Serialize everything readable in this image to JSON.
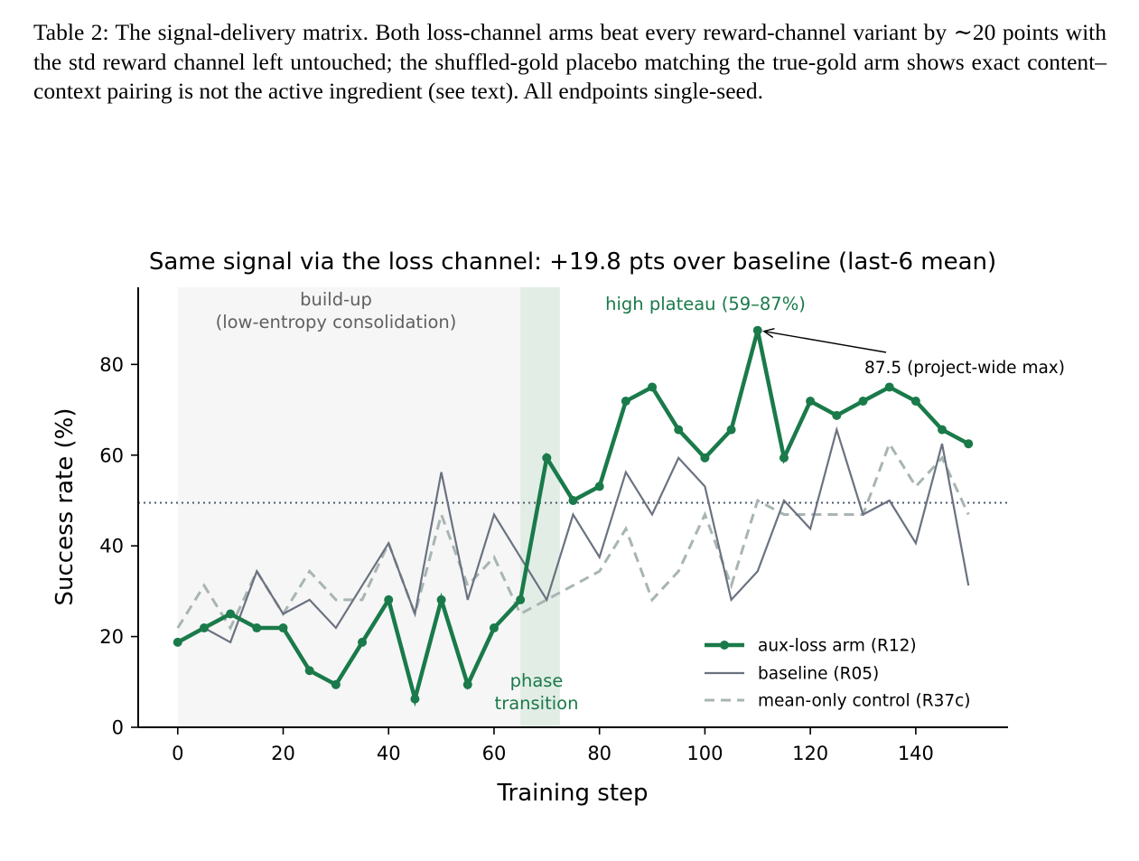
{
  "caption": {
    "text": "Table 2: The signal-delivery matrix. Both loss-channel arms beat every reward-channel variant by ∼20 points with the std reward channel left untouched; the shuffled-gold placebo matching the true-gold arm shows exact content–context pairing is not the active ingredient (see text). All endpoints single-seed."
  },
  "colors": {
    "aux": "#1a7a4a",
    "baseline": "#6b7280",
    "control": "#a7b5b3",
    "buildup_shade": "#f6f6f6",
    "phase_shade": "#d6e6dc",
    "reference_line": "#4d5a68"
  },
  "chart_data": {
    "type": "line",
    "title": "Same signal via the loss channel: +19.8 pts over baseline (last-6 mean)",
    "xlabel": "Training step",
    "ylabel": "Success rate (%)",
    "xlim": [
      -7.5,
      157.5
    ],
    "ylim": [
      0,
      97
    ],
    "xticks": [
      0,
      20,
      40,
      60,
      80,
      100,
      120,
      140
    ],
    "yticks": [
      0,
      20,
      40,
      60,
      80
    ],
    "grid": false,
    "legend_position": "lower-right",
    "reference_line_y": 49.5,
    "regions": [
      {
        "name": "build-up",
        "x": [
          0,
          65
        ],
        "label": "build-up\n(low-entropy consolidation)"
      },
      {
        "name": "phase transition",
        "x": [
          65,
          72.5
        ],
        "label": "phase\ntransition"
      }
    ],
    "annotations": [
      {
        "text": "high plateau (59–87%)",
        "x": 83.5,
        "y": 93.5
      },
      {
        "text": "87.5 (project-wide max)",
        "x": 110,
        "y": 87.5
      }
    ],
    "series": [
      {
        "name": "aux-loss arm (R12)",
        "style": "solid-markers",
        "x": [
          0,
          5,
          10,
          15,
          20,
          25,
          30,
          35,
          40,
          45,
          50,
          55,
          60,
          65,
          70,
          75,
          80,
          85,
          90,
          95,
          100,
          105,
          110,
          115,
          120,
          125,
          130,
          135,
          140,
          145,
          150
        ],
        "values": [
          18.75,
          21.9,
          25,
          21.9,
          21.9,
          12.5,
          9.4,
          18.75,
          28.1,
          6.25,
          28.1,
          9.4,
          21.9,
          28.1,
          59.4,
          50,
          53.1,
          71.9,
          75,
          65.6,
          59.4,
          65.6,
          87.5,
          59.4,
          71.9,
          68.75,
          71.9,
          75,
          71.9,
          65.6,
          62.5
        ]
      },
      {
        "name": "baseline (R05)",
        "style": "solid",
        "x": [
          0,
          5,
          10,
          15,
          20,
          25,
          30,
          35,
          40,
          45,
          50,
          55,
          60,
          65,
          70,
          75,
          80,
          85,
          90,
          95,
          100,
          105,
          110,
          115,
          120,
          125,
          130,
          135,
          140,
          145,
          150
        ],
        "values": [
          18.75,
          21.9,
          18.75,
          34.4,
          25,
          28.1,
          21.9,
          31.25,
          40.6,
          25,
          56.25,
          28.1,
          46.9,
          37.5,
          28.1,
          46.9,
          37.5,
          56.25,
          46.9,
          59.4,
          53.1,
          28.1,
          34.4,
          50,
          43.75,
          65.6,
          46.9,
          50,
          40.6,
          62.5,
          31.25
        ]
      },
      {
        "name": "mean-only control (R37c)",
        "style": "dashed",
        "x": [
          0,
          5,
          10,
          15,
          20,
          25,
          30,
          35,
          40,
          45,
          50,
          55,
          60,
          65,
          80,
          85,
          90,
          95,
          100,
          105,
          110,
          115,
          120,
          125,
          130,
          135,
          140,
          145,
          150
        ],
        "values": [
          21.9,
          31.25,
          21.9,
          34.4,
          25,
          34.4,
          28.1,
          28.1,
          40.6,
          25,
          46.9,
          31.25,
          37.5,
          25,
          34.4,
          43.75,
          28.1,
          34.4,
          46.9,
          31.25,
          50,
          46.9,
          46.9,
          46.9,
          46.9,
          62.5,
          53.1,
          59.4,
          46.9
        ]
      }
    ]
  }
}
